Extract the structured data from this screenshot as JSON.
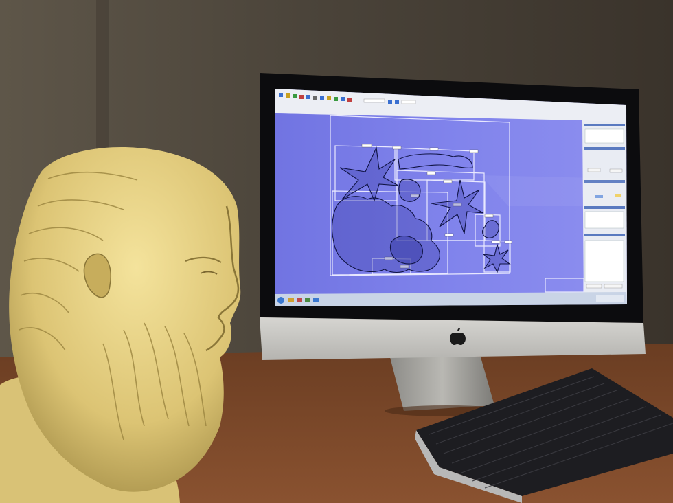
{
  "scene": {
    "colors": {
      "wall_left": "#5b5447",
      "wall_right": "#433c33",
      "desk": "#7a4727",
      "monitor_bezel": "#0c0c0e",
      "monitor_chin": "#c9c8c4",
      "screen_canvas": "#7d7fe6",
      "bust": "#e8d486",
      "keyboard": "#1c1c20"
    },
    "objects": [
      "marble-bust",
      "imac-monitor",
      "wireless-keyboard",
      "wooden-desk"
    ],
    "screen_app": {
      "canvas_shapes": [
        "large-lobed-sponge-outline",
        "starfish-outline",
        "small-starfish-outline",
        "bounding-box",
        "label-tag"
      ],
      "panels": [
        "toolbar",
        "right-side-panel",
        "taskbar"
      ]
    },
    "logo": "apple-logo"
  }
}
